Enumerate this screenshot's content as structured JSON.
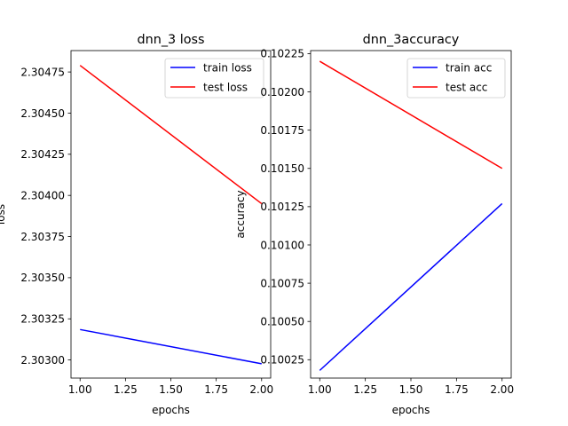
{
  "chart_data": [
    {
      "type": "line",
      "title": "dnn_3 loss",
      "xlabel": "epochs",
      "ylabel": "loss",
      "xlim": [
        0.95,
        2.05
      ],
      "ylim": [
        2.30289,
        2.30488
      ],
      "xticks": [
        "1.00",
        "1.25",
        "1.50",
        "1.75",
        "2.00"
      ],
      "yticks": [
        "2.30300",
        "2.30325",
        "2.30350",
        "2.30375",
        "2.30400",
        "2.30425",
        "2.30450",
        "2.30475"
      ],
      "grid": false,
      "legend_position": "upper-right",
      "series": [
        {
          "name": "train loss",
          "color": "#0000ff",
          "x": [
            1,
            2
          ],
          "y": [
            2.303185,
            2.302977
          ]
        },
        {
          "name": "test loss",
          "color": "#ff0000",
          "x": [
            1,
            2
          ],
          "y": [
            2.30479,
            2.30395
          ]
        }
      ]
    },
    {
      "type": "line",
      "title": "dnn_3accuracy",
      "xlabel": "epochs",
      "ylabel": "accuracy",
      "xlim": [
        0.95,
        2.05
      ],
      "ylim": [
        0.10013,
        0.10227
      ],
      "xticks": [
        "1.00",
        "1.25",
        "1.50",
        "1.75",
        "2.00"
      ],
      "yticks": [
        "0.10025",
        "0.10050",
        "0.10075",
        "0.10100",
        "0.10125",
        "0.10150",
        "0.10175",
        "0.10200",
        "0.10225"
      ],
      "grid": false,
      "legend_position": "upper-right",
      "series": [
        {
          "name": "train acc",
          "color": "#0000ff",
          "x": [
            1,
            2
          ],
          "y": [
            0.10018,
            0.10127
          ]
        },
        {
          "name": "test acc",
          "color": "#ff0000",
          "x": [
            1,
            2
          ],
          "y": [
            0.1022,
            0.1015
          ]
        }
      ]
    }
  ]
}
